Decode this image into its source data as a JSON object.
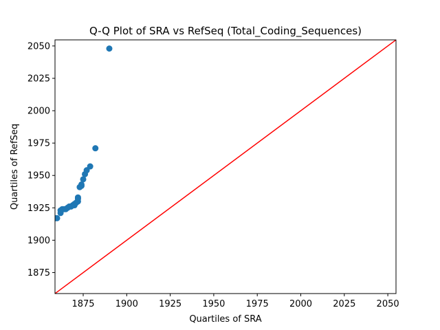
{
  "chart_data": {
    "type": "scatter",
    "title": "Q-Q Plot of SRA vs RefSeq (Total_Coding_Sequences)",
    "xlabel": "Quartiles of SRA",
    "ylabel": "Quartiles of RefSeq",
    "xlim": [
      1858.8,
      2054.7
    ],
    "ylim": [
      1858.8,
      2054.7
    ],
    "x_ticks": [
      1875,
      1900,
      1925,
      1950,
      1975,
      2000,
      2025,
      2050
    ],
    "y_ticks": [
      1875,
      1900,
      1925,
      1950,
      1975,
      2000,
      2025,
      2050
    ],
    "grid": false,
    "point_color": "#1f77b4",
    "reference_line": {
      "color": "#ff0000",
      "from": [
        1858.8,
        1858.8
      ],
      "to": [
        2054.7,
        2054.7
      ]
    },
    "points": [
      {
        "x": 1859,
        "y": 1917
      },
      {
        "x": 1860,
        "y": 1917
      },
      {
        "x": 1862,
        "y": 1921
      },
      {
        "x": 1862,
        "y": 1923
      },
      {
        "x": 1863,
        "y": 1924
      },
      {
        "x": 1864,
        "y": 1924
      },
      {
        "x": 1865,
        "y": 1924
      },
      {
        "x": 1866,
        "y": 1925
      },
      {
        "x": 1867,
        "y": 1926
      },
      {
        "x": 1868,
        "y": 1926
      },
      {
        "x": 1869,
        "y": 1927
      },
      {
        "x": 1870,
        "y": 1928
      },
      {
        "x": 1870,
        "y": 1927
      },
      {
        "x": 1871,
        "y": 1929
      },
      {
        "x": 1872,
        "y": 1930
      },
      {
        "x": 1872,
        "y": 1932
      },
      {
        "x": 1872,
        "y": 1933
      },
      {
        "x": 1873,
        "y": 1941
      },
      {
        "x": 1874,
        "y": 1942
      },
      {
        "x": 1874,
        "y": 1943
      },
      {
        "x": 1875,
        "y": 1947
      },
      {
        "x": 1876,
        "y": 1951
      },
      {
        "x": 1877,
        "y": 1954
      },
      {
        "x": 1879,
        "y": 1957
      },
      {
        "x": 1882,
        "y": 1971
      },
      {
        "x": 1890,
        "y": 2048
      }
    ]
  }
}
